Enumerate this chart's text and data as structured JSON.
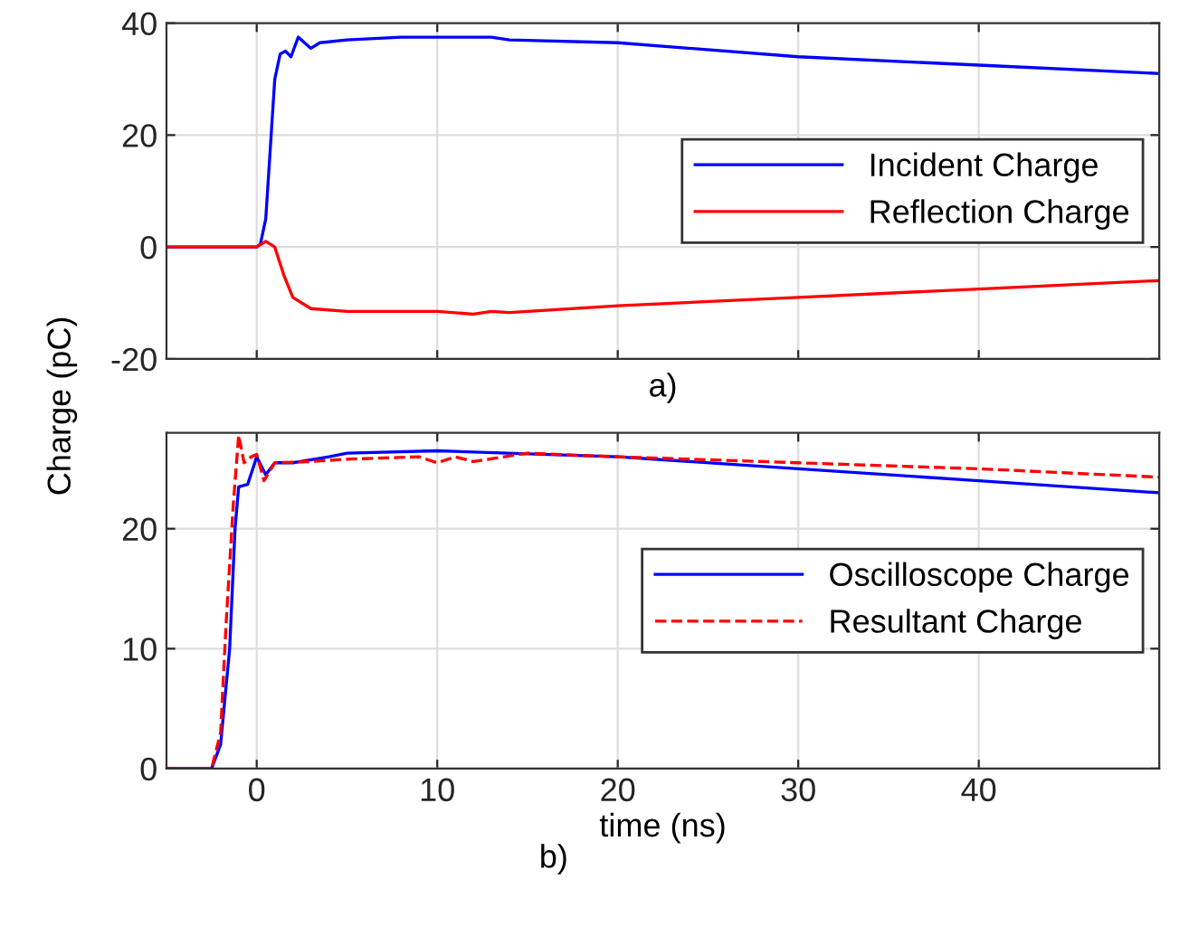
{
  "chart_data": [
    {
      "type": "line",
      "xlabel": "a)",
      "xlim": [
        -5,
        50
      ],
      "xticks": [
        0,
        10,
        20,
        30,
        40
      ],
      "ylim": [
        -20,
        40
      ],
      "yticks": [
        -20,
        0,
        20,
        40
      ],
      "grid": true,
      "legend": "right",
      "tick_labels": "y",
      "series": [
        {
          "name": "Incident Charge",
          "color": "#0000ff",
          "line_style": "solid",
          "x": [
            -5,
            0,
            0.2,
            0.5,
            0.8,
            1.0,
            1.3,
            1.6,
            1.9,
            2.3,
            3,
            3.5,
            5,
            8,
            10,
            12,
            13,
            14,
            20,
            30,
            40,
            50
          ],
          "values": [
            0,
            0,
            0.5,
            5,
            20,
            30,
            34.5,
            35,
            34,
            37.5,
            35.5,
            36.5,
            37,
            37.5,
            37.5,
            37.5,
            37.5,
            37,
            36.5,
            34,
            32.5,
            31
          ]
        },
        {
          "name": "Reflection Charge",
          "color": "#ff0000",
          "line_style": "solid",
          "x": [
            -5,
            0,
            0.5,
            1,
            1.5,
            2,
            3,
            5,
            10,
            12,
            13,
            14,
            20,
            30,
            40,
            50
          ],
          "values": [
            0,
            0,
            1,
            0,
            -5,
            -9,
            -11,
            -11.5,
            -11.5,
            -12,
            -11.5,
            -11.7,
            -10.5,
            -9,
            -7.5,
            -6
          ]
        }
      ]
    },
    {
      "type": "line",
      "xlabel": "time (ns)",
      "ylabel": "Charge (pC)",
      "annotations": [
        "b)"
      ],
      "xlim": [
        -5,
        50
      ],
      "xticks": [
        0,
        10,
        20,
        30,
        40
      ],
      "ylim": [
        0,
        28
      ],
      "yticks": [
        0,
        10,
        20
      ],
      "grid": true,
      "legend": "right",
      "series": [
        {
          "name": "Oscilloscope Charge",
          "color": "#0000ff",
          "line_style": "solid",
          "x": [
            -5,
            -2.5,
            -2,
            -1.5,
            -1.2,
            -1,
            -0.5,
            0,
            0.5,
            1,
            2,
            4,
            5,
            10,
            20,
            30,
            40,
            50
          ],
          "values": [
            0,
            0,
            2,
            10,
            20,
            23.5,
            23.7,
            26,
            24.5,
            25.5,
            25.5,
            26,
            26.3,
            26.5,
            26,
            25,
            24,
            23
          ]
        },
        {
          "name": "Resultant Charge",
          "color": "#ff0000",
          "line_style": "dashed",
          "x": [
            -5,
            -2.5,
            -2,
            -1.7,
            -1.3,
            -1,
            -0.7,
            -0.3,
            0,
            0.4,
            1,
            3,
            5,
            9,
            10,
            11,
            12,
            15,
            20,
            30,
            40,
            50
          ],
          "values": [
            0,
            0,
            3,
            12,
            22,
            27.8,
            25.5,
            26,
            26.2,
            24,
            25.5,
            25.6,
            25.8,
            26,
            25.5,
            26,
            25.6,
            26.3,
            26,
            25.5,
            25,
            24.3
          ]
        }
      ]
    }
  ]
}
